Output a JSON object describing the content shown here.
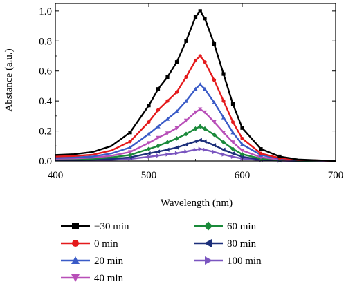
{
  "chart_data": {
    "type": "line",
    "title": "",
    "xlabel": "Wavelength (nm)",
    "ylabel": "Abstance (a.u.)",
    "xlim": [
      400,
      700
    ],
    "ylim": [
      0,
      1.05
    ],
    "x_ticks": [
      400,
      500,
      600,
      700
    ],
    "y_ticks": [
      0.0,
      0.2,
      0.4,
      0.6,
      0.8,
      1.0
    ],
    "x_tick_labels": [
      "400",
      "500",
      "600",
      "700"
    ],
    "y_tick_labels": [
      "0.0",
      "0.2",
      "0.4",
      "0.6",
      "0.8",
      "1.0"
    ],
    "grid": false,
    "legend_position": "bottom",
    "x": [
      400,
      420,
      440,
      460,
      480,
      500,
      510,
      520,
      530,
      540,
      550,
      555,
      560,
      570,
      580,
      590,
      600,
      620,
      640,
      660,
      680,
      700
    ],
    "series": [
      {
        "name": "−30 min",
        "color": "#000000",
        "marker": "square",
        "values": [
          0.04,
          0.045,
          0.06,
          0.1,
          0.19,
          0.37,
          0.48,
          0.56,
          0.66,
          0.8,
          0.96,
          1.0,
          0.95,
          0.78,
          0.58,
          0.38,
          0.22,
          0.08,
          0.03,
          0.01,
          0.005,
          0.0
        ]
      },
      {
        "name": "0 min",
        "color": "#e41a1c",
        "marker": "circle",
        "values": [
          0.03,
          0.033,
          0.042,
          0.07,
          0.13,
          0.26,
          0.34,
          0.4,
          0.46,
          0.56,
          0.67,
          0.7,
          0.66,
          0.54,
          0.4,
          0.26,
          0.15,
          0.05,
          0.02,
          0.008,
          0.004,
          0.0
        ]
      },
      {
        "name": "20 min",
        "color": "#3a5bc7",
        "marker": "triangle-up",
        "values": [
          0.02,
          0.023,
          0.03,
          0.05,
          0.09,
          0.18,
          0.23,
          0.28,
          0.33,
          0.4,
          0.48,
          0.51,
          0.48,
          0.39,
          0.29,
          0.19,
          0.11,
          0.04,
          0.015,
          0.006,
          0.003,
          0.0
        ]
      },
      {
        "name": "40 min",
        "color": "#b84fb8",
        "marker": "triangle-down",
        "values": [
          0.015,
          0.017,
          0.022,
          0.035,
          0.06,
          0.12,
          0.155,
          0.185,
          0.22,
          0.27,
          0.325,
          0.345,
          0.325,
          0.26,
          0.19,
          0.125,
          0.07,
          0.025,
          0.01,
          0.004,
          0.002,
          0.0
        ]
      },
      {
        "name": "60 min",
        "color": "#1a8a3a",
        "marker": "diamond",
        "values": [
          0.01,
          0.011,
          0.015,
          0.024,
          0.04,
          0.08,
          0.1,
          0.125,
          0.15,
          0.18,
          0.215,
          0.23,
          0.215,
          0.175,
          0.125,
          0.08,
          0.045,
          0.015,
          0.006,
          0.002,
          0.001,
          0.0
        ]
      },
      {
        "name": "80 min",
        "color": "#1c2f7a",
        "marker": "triangle-left",
        "values": [
          0.006,
          0.007,
          0.009,
          0.014,
          0.024,
          0.05,
          0.062,
          0.075,
          0.09,
          0.11,
          0.13,
          0.14,
          0.13,
          0.105,
          0.075,
          0.05,
          0.028,
          0.009,
          0.004,
          0.001,
          0.0,
          0.0
        ]
      },
      {
        "name": "100 min",
        "color": "#7a55c0",
        "marker": "triangle-right",
        "values": [
          0.003,
          0.004,
          0.005,
          0.008,
          0.014,
          0.028,
          0.036,
          0.044,
          0.052,
          0.063,
          0.075,
          0.08,
          0.075,
          0.06,
          0.043,
          0.028,
          0.016,
          0.005,
          0.002,
          0.0,
          0.0,
          0.0
        ]
      }
    ]
  }
}
